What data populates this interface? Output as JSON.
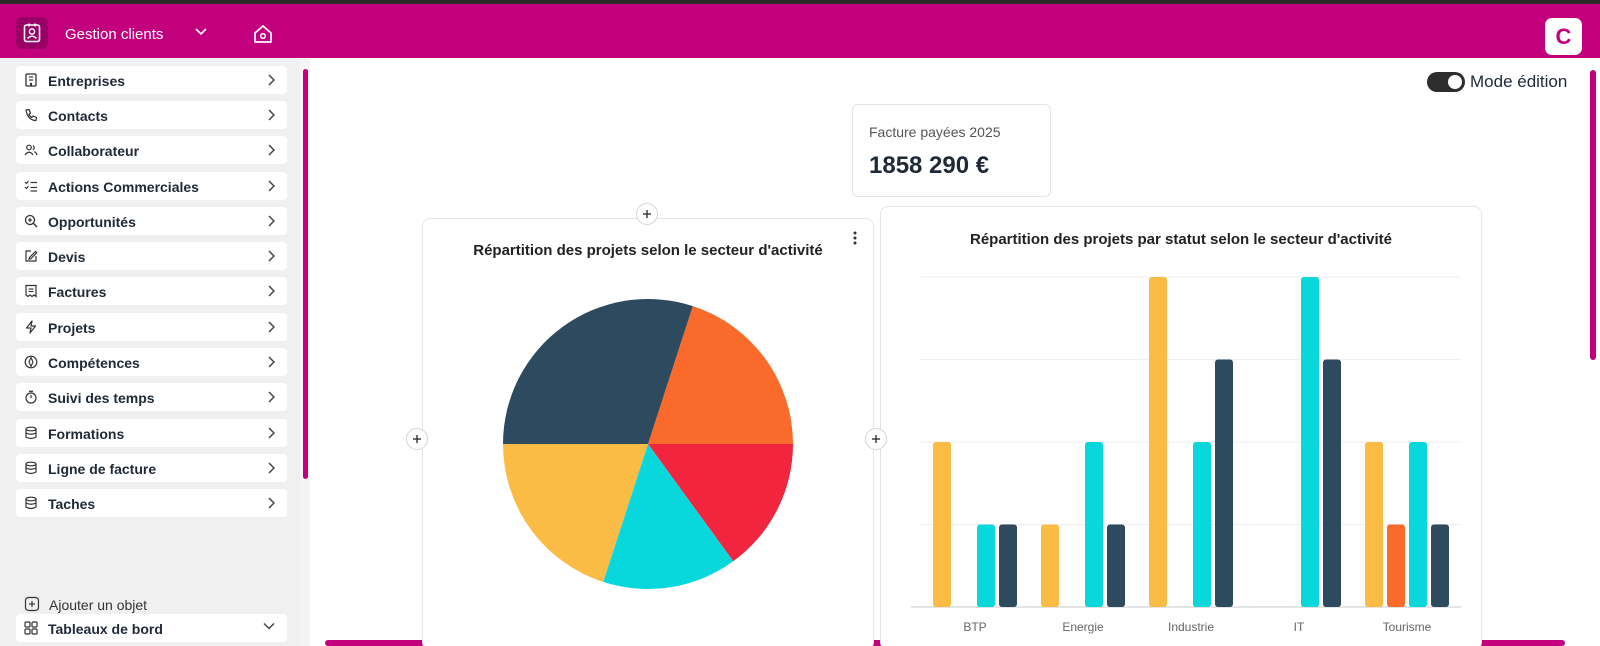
{
  "header": {
    "app_name": "Gestion clients",
    "avatar_letter": "C",
    "brand_color": "#c2007e"
  },
  "sidebar": {
    "items": [
      {
        "label": "Entreprises",
        "icon": "building-icon"
      },
      {
        "label": "Contacts",
        "icon": "phone-icon"
      },
      {
        "label": "Collaborateur",
        "icon": "users-icon"
      },
      {
        "label": "Actions Commerciales",
        "icon": "list-check-icon"
      },
      {
        "label": "Opportunités",
        "icon": "zoom-in-icon"
      },
      {
        "label": "Devis",
        "icon": "edit-icon"
      },
      {
        "label": "Factures",
        "icon": "receipt-icon"
      },
      {
        "label": "Projets",
        "icon": "bolt-icon"
      },
      {
        "label": "Compétences",
        "icon": "compass-icon"
      },
      {
        "label": "Suivi des temps",
        "icon": "stopwatch-icon"
      },
      {
        "label": "Formations",
        "icon": "database-icon"
      },
      {
        "label": "Ligne de facture",
        "icon": "database-icon"
      },
      {
        "label": "Taches",
        "icon": "database-icon"
      }
    ],
    "add_object": "Ajouter un objet",
    "dashboards": "Tableaux de bord"
  },
  "main": {
    "mode_label": "Mode édition",
    "mode_enabled": true,
    "kpi": {
      "title": "Facture payées 2025",
      "value": "1858 290 €"
    }
  },
  "chart_data": [
    {
      "type": "pie",
      "title": "Répartition des projets selon le secteur d'activité",
      "slices": [
        {
          "value": 20,
          "color": "#fa6a2a"
        },
        {
          "value": 15,
          "color": "#f2253f"
        },
        {
          "value": 15,
          "color": "#08d8dc"
        },
        {
          "value": 20,
          "color": "#fbbc45"
        },
        {
          "value": 30,
          "color": "#2e4a5f"
        }
      ]
    },
    {
      "type": "bar",
      "title": "Répartition des projets par statut selon le secteur d'activité",
      "categories": [
        "BTP",
        "Energie",
        "Industrie",
        "IT",
        "Tourisme"
      ],
      "ylim": [
        0,
        4
      ],
      "grid": true,
      "series": [
        {
          "values": [
            2,
            1,
            4,
            0,
            2
          ],
          "color": "#fbbc45"
        },
        {
          "values": [
            0,
            0,
            0,
            0,
            1
          ],
          "color": "#fa6a2a"
        },
        {
          "values": [
            1,
            2,
            2,
            4,
            2
          ],
          "color": "#08d8dc"
        },
        {
          "values": [
            1,
            1,
            3,
            3,
            1
          ],
          "color": "#2e4a5f"
        }
      ]
    }
  ]
}
